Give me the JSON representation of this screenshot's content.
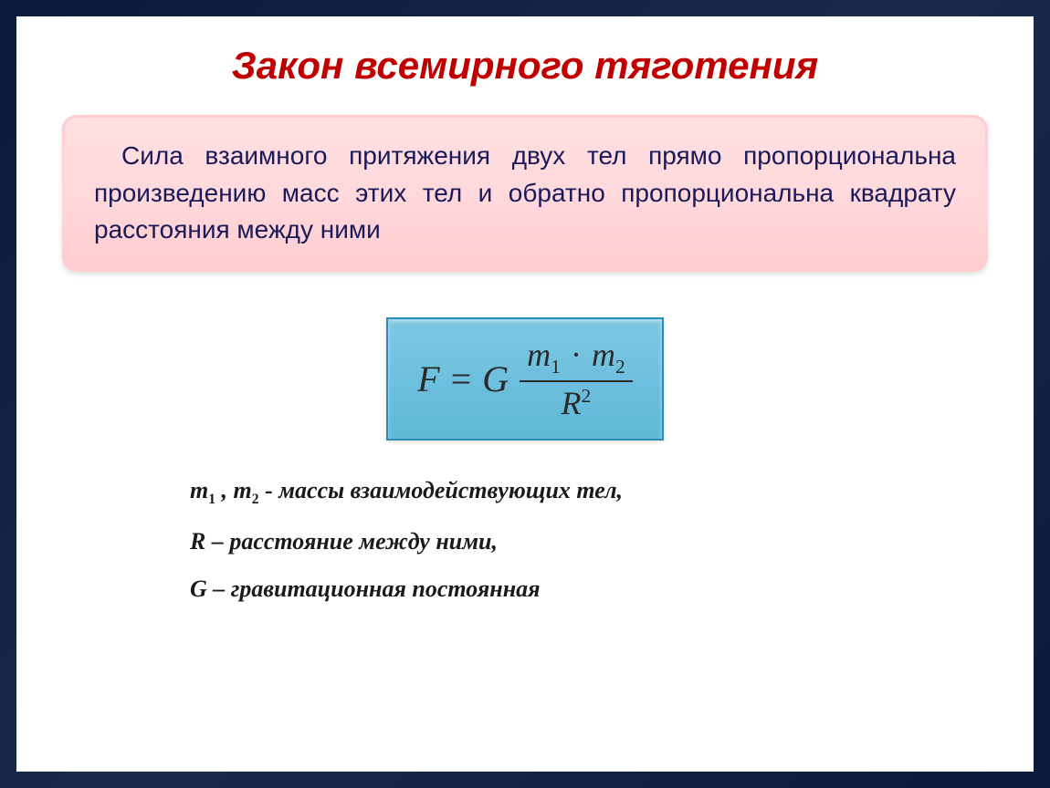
{
  "title": "Закон всемирного тяготения",
  "definition": "Сила взаимного притяжения двух тел прямо пропорциональна произведению масс этих тел и обратно пропорциональна квадрату расстояния между ними",
  "formula": {
    "lhs": "F",
    "equals": "=",
    "coefficient": "G",
    "numerator_m1": "m",
    "numerator_sub1": "1",
    "numerator_dot": "·",
    "numerator_m2": "m",
    "numerator_sub2": "2",
    "denominator_base": "R",
    "denominator_exp": "2"
  },
  "legend": {
    "item1_var": "m",
    "item1_sub1": "1",
    "item1_comma": " , ",
    "item1_var2": "m",
    "item1_sub2": "2",
    "item1_desc": " - массы взаимодействующих тел,",
    "item2_var": "R",
    "item2_desc": " – расстояние между ними,",
    "item3_var": "G",
    "item3_desc": " – гравитационная постоянная"
  },
  "colors": {
    "title_color": "#c00000",
    "definition_bg_start": "#ffcccf",
    "definition_bg_end": "#ffd9dc",
    "definition_text": "#1a1a5a",
    "formula_bg_start": "#7ec8e3",
    "formula_bg_end": "#5db8d8",
    "formula_border": "#2a8ab8",
    "slide_bg": "#ffffff",
    "frame_bg": "#0a1a3a"
  },
  "typography": {
    "title_fontsize": 42,
    "definition_fontsize": 28,
    "formula_fontsize": 40,
    "legend_fontsize": 26
  }
}
